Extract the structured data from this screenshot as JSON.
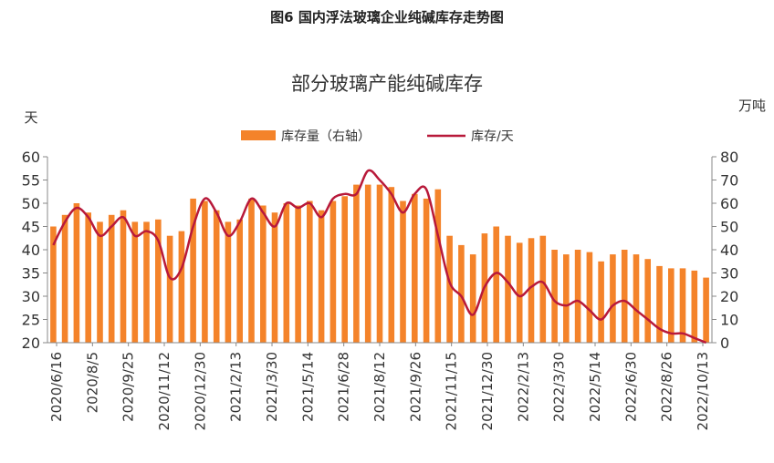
{
  "figure_title": "图6 国内浮法玻璃企业纯碱库存走势图",
  "colors": {
    "bar": "#F4832A",
    "line": "#B8193A",
    "axis": "#888888",
    "text": "#333333"
  },
  "chart_data": {
    "type": "bar+line",
    "title": "部分玻璃产能纯碱库存",
    "ylabel_left": "天",
    "ylabel_right": "万吨",
    "ylim_left": [
      20,
      60
    ],
    "yticks_left": [
      20,
      25,
      30,
      35,
      40,
      45,
      50,
      55,
      60
    ],
    "ylim_right": [
      0,
      80
    ],
    "yticks_right": [
      0,
      10,
      20,
      30,
      40,
      50,
      60,
      70,
      80
    ],
    "legend": [
      "库存量（右轴）",
      "库存/天"
    ],
    "x_tick_labels": [
      "2020/6/16",
      "2020/8/5",
      "2020/9/25",
      "2020/11/12",
      "2020/12/30",
      "2021/2/13",
      "2021/3/30",
      "2021/5/14",
      "2021/6/28",
      "2021/8/12",
      "2021/9/26",
      "2021/11/15",
      "2021/12/30",
      "2022/2/13",
      "2022/3/30",
      "2022/5/14",
      "2022/6/30",
      "2022/8/26",
      "2022/10/13"
    ],
    "series": [
      {
        "name": "库存量（右轴）",
        "axis": "right",
        "type": "bar",
        "values": [
          50,
          55,
          60,
          56,
          52,
          55,
          57,
          52,
          52,
          53,
          46,
          48,
          62,
          61,
          57,
          52,
          53,
          62,
          59,
          56,
          60,
          59,
          61,
          57,
          61,
          63,
          68,
          68,
          68,
          67,
          61,
          64,
          62,
          66,
          46,
          42,
          38,
          47,
          50,
          46,
          43,
          45,
          46,
          40,
          38,
          40,
          39,
          35,
          38,
          40,
          38,
          36,
          33,
          32,
          32,
          31,
          28
        ]
      },
      {
        "name": "库存/天",
        "axis": "left",
        "type": "line",
        "values": [
          41,
          46,
          49,
          47,
          43,
          45,
          47,
          43,
          44,
          42,
          34,
          36,
          45,
          51,
          48,
          43,
          46,
          51,
          48,
          45,
          50,
          49,
          50,
          47,
          51,
          52,
          52,
          57,
          55,
          52,
          48,
          52,
          53,
          43,
          33,
          30,
          26,
          32,
          35,
          33,
          30,
          32,
          33,
          29,
          28,
          29,
          27,
          25,
          28,
          29,
          27,
          25,
          23,
          22,
          22,
          21,
          20
        ]
      }
    ]
  }
}
